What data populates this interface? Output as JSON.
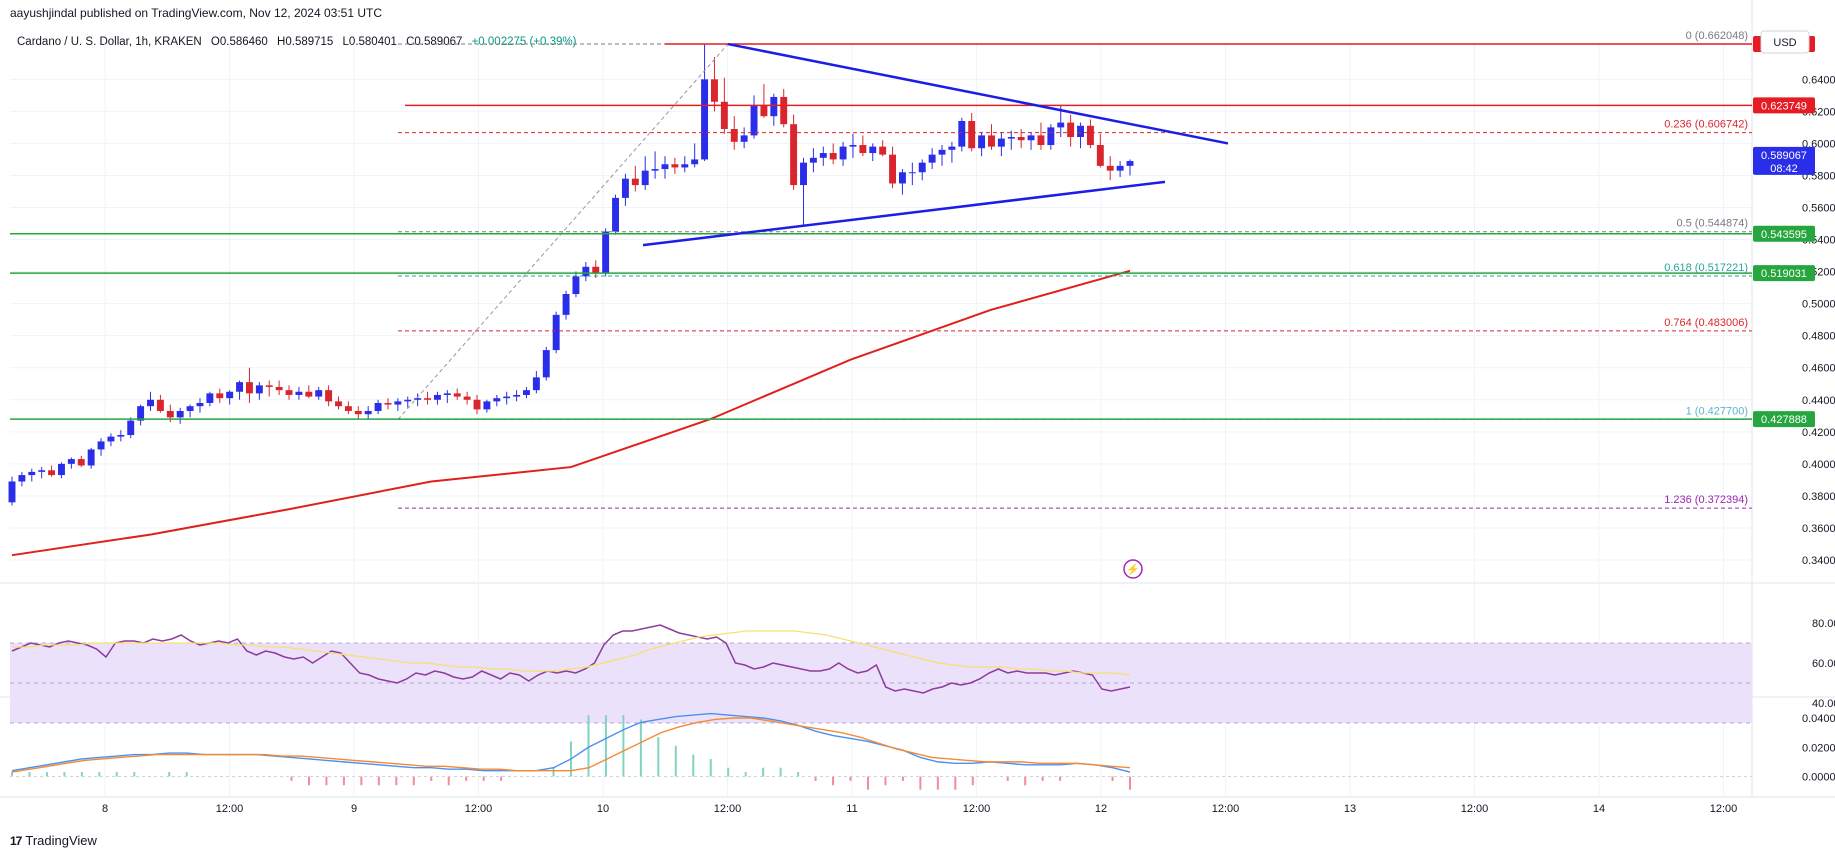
{
  "header": {
    "published": "aayushjindal published on TradingView.com, Nov 12, 2024 03:51 UTC"
  },
  "legend": {
    "symbol": "Cardano / U. S. Dollar, 1h, KRAKEN",
    "open": "O0.586460",
    "high": "H0.589715",
    "low": "L0.580401",
    "close": "C0.589067",
    "change": "+0.002275 (+0.39%)"
  },
  "currency_button": "USD",
  "brand": {
    "logo": "17",
    "name": "TradingView"
  },
  "colors": {
    "background": "#ffffff",
    "grid": "#f0f3fa",
    "up_candle": "#2a2ee8",
    "down_candle": "#d9262e",
    "trendline": "#1c1ee6",
    "resistance": "#e51c23",
    "support": "#26a63f",
    "ma": "#e0201b",
    "rsi_line": "#8e3b9d",
    "rsi_ma": "#f7e06f",
    "rsi_band": "#ece1fb",
    "macd_line": "#4c8ff4",
    "signal_line": "#f58a32",
    "hist_up": "#7fd4c2",
    "hist_down": "#f28b95",
    "price_tag": "#2a2ee8"
  },
  "chart_data": [
    {
      "type": "candlestick",
      "title": "Cardano / U. S. Dollar, 1h, KRAKEN",
      "x_tick_labels": [
        "8",
        "12:00",
        "9",
        "12:00",
        "10",
        "12:00",
        "11",
        "12:00",
        "12",
        "12:00",
        "13",
        "12:00",
        "14",
        "12:00"
      ],
      "y_tick_labels": [
        "0.340000",
        "0.360000",
        "0.380000",
        "0.400000",
        "0.420000",
        "0.440000",
        "0.460000",
        "0.480000",
        "0.500000",
        "0.520000",
        "0.540000",
        "0.560000",
        "0.580000",
        "0.600000",
        "0.620000",
        "0.640000"
      ],
      "ylim": [
        0.325,
        0.667
      ],
      "horizontal_levels": [
        {
          "value": 0.662048,
          "label": "0.662048",
          "kind": "resistance"
        },
        {
          "value": 0.623749,
          "label": "0.623749",
          "kind": "resistance"
        },
        {
          "value": 0.543595,
          "label": "0.543595",
          "kind": "support"
        },
        {
          "value": 0.519031,
          "label": "0.519031",
          "kind": "support"
        },
        {
          "value": 0.427888,
          "label": "0.427888",
          "kind": "support"
        }
      ],
      "fibonacci": [
        {
          "ratio": "0",
          "value": 0.662048,
          "label": "0 (0.662048)"
        },
        {
          "ratio": "0.236",
          "value": 0.606742,
          "label": "0.236 (0.606742)"
        },
        {
          "ratio": "0.5",
          "value": 0.544874,
          "label": "0.5 (0.544874)"
        },
        {
          "ratio": "0.618",
          "value": 0.517221,
          "label": "0.618 (0.517221)"
        },
        {
          "ratio": "0.764",
          "value": 0.483006,
          "label": "0.764 (0.483006)"
        },
        {
          "ratio": "1",
          "value": 0.4277,
          "label": "1 (0.427700)"
        },
        {
          "ratio": "1.236",
          "value": 0.372394,
          "label": "1.236 (0.372394)"
        }
      ],
      "current_price": {
        "value": 0.589067,
        "label": "0.589067",
        "countdown": "08:42"
      },
      "triangle": {
        "upper": [
          [
            "11 12:00",
            0.662
          ],
          [
            "12 12:00",
            0.6
          ]
        ],
        "lower": [
          [
            "10 02:00",
            0.5365
          ],
          [
            "12 06:00",
            0.576
          ]
        ]
      },
      "moving_average": [
        [
          0.343,
          0.356,
          0.372,
          0.389,
          0.398,
          0.428,
          0.465,
          0.496,
          0.5205
        ]
      ],
      "candles_ohlc": [
        [
          0.376,
          0.392,
          0.374,
          0.389
        ],
        [
          0.389,
          0.395,
          0.386,
          0.393
        ],
        [
          0.393,
          0.397,
          0.389,
          0.395
        ],
        [
          0.395,
          0.398,
          0.391,
          0.396
        ],
        [
          0.396,
          0.399,
          0.392,
          0.393
        ],
        [
          0.393,
          0.401,
          0.391,
          0.4
        ],
        [
          0.4,
          0.404,
          0.397,
          0.403
        ],
        [
          0.403,
          0.405,
          0.398,
          0.399
        ],
        [
          0.399,
          0.41,
          0.397,
          0.409
        ],
        [
          0.409,
          0.416,
          0.405,
          0.414
        ],
        [
          0.414,
          0.419,
          0.411,
          0.417
        ],
        [
          0.417,
          0.421,
          0.414,
          0.418
        ],
        [
          0.418,
          0.429,
          0.416,
          0.427
        ],
        [
          0.427,
          0.437,
          0.424,
          0.436
        ],
        [
          0.436,
          0.445,
          0.433,
          0.44
        ],
        [
          0.44,
          0.443,
          0.432,
          0.433
        ],
        [
          0.433,
          0.437,
          0.426,
          0.429
        ],
        [
          0.429,
          0.435,
          0.425,
          0.433
        ],
        [
          0.433,
          0.437,
          0.429,
          0.436
        ],
        [
          0.436,
          0.441,
          0.432,
          0.438
        ],
        [
          0.438,
          0.445,
          0.436,
          0.444
        ],
        [
          0.444,
          0.447,
          0.438,
          0.441
        ],
        [
          0.441,
          0.446,
          0.437,
          0.445
        ],
        [
          0.445,
          0.452,
          0.44,
          0.451
        ],
        [
          0.451,
          0.46,
          0.438,
          0.444
        ],
        [
          0.444,
          0.451,
          0.44,
          0.449
        ],
        [
          0.449,
          0.452,
          0.442,
          0.448
        ],
        [
          0.448,
          0.452,
          0.443,
          0.446
        ],
        [
          0.446,
          0.449,
          0.44,
          0.443
        ],
        [
          0.443,
          0.448,
          0.44,
          0.445
        ],
        [
          0.445,
          0.449,
          0.441,
          0.442
        ],
        [
          0.442,
          0.448,
          0.44,
          0.446
        ],
        [
          0.446,
          0.449,
          0.436,
          0.439
        ],
        [
          0.439,
          0.442,
          0.434,
          0.436
        ],
        [
          0.436,
          0.439,
          0.431,
          0.433
        ],
        [
          0.433,
          0.436,
          0.428,
          0.431
        ],
        [
          0.431,
          0.436,
          0.428,
          0.433
        ],
        [
          0.433,
          0.44,
          0.431,
          0.438
        ],
        [
          0.438,
          0.441,
          0.434,
          0.437
        ],
        [
          0.437,
          0.441,
          0.433,
          0.439
        ],
        [
          0.439,
          0.442,
          0.435,
          0.44
        ],
        [
          0.44,
          0.444,
          0.436,
          0.441
        ],
        [
          0.441,
          0.445,
          0.437,
          0.44
        ],
        [
          0.44,
          0.445,
          0.437,
          0.443
        ],
        [
          0.443,
          0.446,
          0.438,
          0.444
        ],
        [
          0.444,
          0.447,
          0.44,
          0.442
        ],
        [
          0.442,
          0.445,
          0.437,
          0.44
        ],
        [
          0.44,
          0.443,
          0.431,
          0.434
        ],
        [
          0.434,
          0.44,
          0.432,
          0.439
        ],
        [
          0.439,
          0.443,
          0.436,
          0.441
        ],
        [
          0.441,
          0.445,
          0.437,
          0.442
        ],
        [
          0.442,
          0.446,
          0.439,
          0.443
        ],
        [
          0.443,
          0.448,
          0.441,
          0.446
        ],
        [
          0.446,
          0.458,
          0.444,
          0.454
        ],
        [
          0.454,
          0.473,
          0.452,
          0.471
        ],
        [
          0.471,
          0.495,
          0.469,
          0.493
        ],
        [
          0.493,
          0.508,
          0.49,
          0.506
        ],
        [
          0.506,
          0.52,
          0.504,
          0.517
        ],
        [
          0.517,
          0.526,
          0.514,
          0.523
        ],
        [
          0.523,
          0.527,
          0.516,
          0.519
        ],
        [
          0.519,
          0.547,
          0.517,
          0.545
        ],
        [
          0.545,
          0.568,
          0.543,
          0.566
        ],
        [
          0.566,
          0.581,
          0.561,
          0.578
        ],
        [
          0.578,
          0.586,
          0.57,
          0.574
        ],
        [
          0.574,
          0.592,
          0.571,
          0.583
        ],
        [
          0.583,
          0.595,
          0.578,
          0.584
        ],
        [
          0.584,
          0.592,
          0.578,
          0.587
        ],
        [
          0.587,
          0.591,
          0.581,
          0.585
        ],
        [
          0.585,
          0.592,
          0.582,
          0.587
        ],
        [
          0.587,
          0.6,
          0.585,
          0.59
        ],
        [
          0.59,
          0.662,
          0.589,
          0.64
        ],
        [
          0.64,
          0.654,
          0.62,
          0.626
        ],
        [
          0.626,
          0.641,
          0.606,
          0.609
        ],
        [
          0.609,
          0.617,
          0.596,
          0.601
        ],
        [
          0.601,
          0.61,
          0.597,
          0.605
        ],
        [
          0.605,
          0.63,
          0.603,
          0.624
        ],
        [
          0.624,
          0.637,
          0.616,
          0.617
        ],
        [
          0.617,
          0.631,
          0.611,
          0.629
        ],
        [
          0.629,
          0.634,
          0.61,
          0.612
        ],
        [
          0.612,
          0.618,
          0.571,
          0.574
        ],
        [
          0.574,
          0.591,
          0.549,
          0.588
        ],
        [
          0.588,
          0.597,
          0.582,
          0.591
        ],
        [
          0.591,
          0.598,
          0.586,
          0.594
        ],
        [
          0.594,
          0.6,
          0.587,
          0.59
        ],
        [
          0.59,
          0.601,
          0.586,
          0.598
        ],
        [
          0.598,
          0.606,
          0.591,
          0.599
        ],
        [
          0.599,
          0.605,
          0.592,
          0.594
        ],
        [
          0.594,
          0.6,
          0.589,
          0.598
        ],
        [
          0.598,
          0.602,
          0.592,
          0.593
        ],
        [
          0.593,
          0.598,
          0.572,
          0.575
        ],
        [
          0.575,
          0.584,
          0.568,
          0.582
        ],
        [
          0.582,
          0.588,
          0.574,
          0.582
        ],
        [
          0.582,
          0.59,
          0.577,
          0.588
        ],
        [
          0.588,
          0.597,
          0.584,
          0.593
        ],
        [
          0.593,
          0.599,
          0.586,
          0.596
        ],
        [
          0.596,
          0.601,
          0.588,
          0.598
        ],
        [
          0.598,
          0.616,
          0.595,
          0.614
        ],
        [
          0.614,
          0.619,
          0.595,
          0.597
        ],
        [
          0.597,
          0.607,
          0.592,
          0.605
        ],
        [
          0.605,
          0.612,
          0.596,
          0.598
        ],
        [
          0.598,
          0.607,
          0.592,
          0.603
        ],
        [
          0.603,
          0.608,
          0.596,
          0.604
        ],
        [
          0.604,
          0.609,
          0.597,
          0.602
        ],
        [
          0.602,
          0.607,
          0.596,
          0.605
        ],
        [
          0.605,
          0.613,
          0.596,
          0.599
        ],
        [
          0.599,
          0.612,
          0.596,
          0.61
        ],
        [
          0.61,
          0.624,
          0.604,
          0.613
        ],
        [
          0.613,
          0.618,
          0.598,
          0.604
        ],
        [
          0.604,
          0.613,
          0.597,
          0.611
        ],
        [
          0.611,
          0.615,
          0.597,
          0.599
        ],
        [
          0.599,
          0.606,
          0.585,
          0.586
        ],
        [
          0.586,
          0.592,
          0.577,
          0.583
        ],
        [
          0.583,
          0.589,
          0.579,
          0.586
        ],
        [
          0.586,
          0.59,
          0.58,
          0.589
        ]
      ]
    },
    {
      "type": "line",
      "title": "RSI",
      "y_tick_labels": [
        "40.00",
        "60.00",
        "80.00"
      ],
      "ylim": [
        30,
        95
      ],
      "band": [
        30,
        70
      ],
      "midline": 50,
      "series": [
        {
          "values": [
            66,
            68,
            70,
            69,
            68,
            70,
            71,
            70,
            69,
            67,
            63,
            70,
            71,
            71,
            70,
            72,
            71,
            72,
            74,
            71,
            69,
            70,
            71,
            70,
            72,
            66,
            64,
            66,
            65,
            63,
            62,
            63,
            60,
            63,
            66,
            65,
            60,
            55,
            54,
            52,
            51,
            50,
            52,
            55,
            54,
            56,
            55,
            53,
            52,
            53,
            56,
            54,
            52,
            55,
            54,
            51,
            54,
            56,
            55,
            56,
            55,
            57,
            60,
            69,
            74,
            76,
            76,
            77,
            78,
            79,
            77,
            75,
            74,
            73,
            72,
            73,
            70,
            60,
            59,
            57,
            58,
            60,
            59,
            58,
            57,
            56,
            56,
            57,
            60,
            57,
            55,
            56,
            59,
            48,
            46,
            47,
            46,
            45,
            47,
            48,
            50,
            49,
            50,
            52,
            55,
            57,
            55,
            56,
            55,
            55,
            55,
            54,
            55,
            56,
            55,
            54,
            47,
            46,
            47,
            48
          ]
        },
        {
          "values": [
            68,
            68,
            69,
            69,
            69,
            70,
            70,
            70,
            70,
            70,
            70,
            70,
            70,
            70,
            69,
            69,
            68,
            68,
            67,
            66,
            65,
            64,
            63,
            62,
            61,
            60,
            60,
            59,
            58,
            58,
            57,
            57,
            56,
            56,
            56,
            57,
            58,
            60,
            62,
            64,
            67,
            69,
            71,
            73,
            74,
            75,
            76,
            76,
            76,
            76,
            75,
            74,
            72,
            70,
            68,
            66,
            64,
            62,
            60,
            59,
            58,
            58,
            58,
            57,
            57,
            56,
            56,
            55,
            55,
            55,
            54
          ]
        }
      ]
    },
    {
      "type": "line",
      "title": "MACD",
      "y_tick_labels": [
        "0.000000",
        "0.020000",
        "0.040000"
      ],
      "ylim": [
        -0.006,
        0.046
      ],
      "series": [
        {
          "values": [
            0.004,
            0.006,
            0.008,
            0.01,
            0.012,
            0.013,
            0.014,
            0.015,
            0.015,
            0.016,
            0.016,
            0.015,
            0.015,
            0.015,
            0.015,
            0.014,
            0.013,
            0.012,
            0.011,
            0.01,
            0.009,
            0.008,
            0.007,
            0.006,
            0.006,
            0.005,
            0.005,
            0.004,
            0.004,
            0.004,
            0.004,
            0.006,
            0.012,
            0.02,
            0.026,
            0.032,
            0.037,
            0.039,
            0.041,
            0.042,
            0.043,
            0.042,
            0.041,
            0.04,
            0.038,
            0.035,
            0.031,
            0.028,
            0.026,
            0.024,
            0.021,
            0.018,
            0.013,
            0.01,
            0.009,
            0.009,
            0.01,
            0.009,
            0.008,
            0.008,
            0.008,
            0.009,
            0.008,
            0.006,
            0.003
          ]
        },
        {
          "values": [
            0.003,
            0.005,
            0.007,
            0.009,
            0.011,
            0.012,
            0.013,
            0.014,
            0.015,
            0.015,
            0.015,
            0.015,
            0.015,
            0.015,
            0.015,
            0.014,
            0.014,
            0.013,
            0.012,
            0.011,
            0.01,
            0.009,
            0.008,
            0.007,
            0.007,
            0.006,
            0.005,
            0.005,
            0.004,
            0.004,
            0.004,
            0.004,
            0.006,
            0.012,
            0.018,
            0.024,
            0.03,
            0.034,
            0.037,
            0.039,
            0.04,
            0.04,
            0.038,
            0.036,
            0.034,
            0.032,
            0.03,
            0.027,
            0.023,
            0.019,
            0.016,
            0.013,
            0.012,
            0.011,
            0.01,
            0.01,
            0.01,
            0.009,
            0.009,
            0.009,
            0.008,
            0.007,
            0.006
          ]
        }
      ]
    }
  ]
}
